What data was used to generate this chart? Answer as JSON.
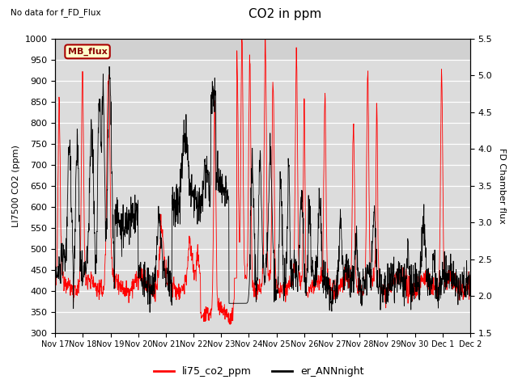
{
  "title": "CO2 in ppm",
  "top_left_text": "No data for f_FD_Flux",
  "legend_box_text": "MB_flux",
  "ylabel_left": "LI7500 CO2 (ppm)",
  "ylabel_right": "FD Chamber flux",
  "ylim_left": [
    300,
    1000
  ],
  "ylim_right": [
    1.5,
    5.5
  ],
  "xtick_labels": [
    "Nov 17",
    "Nov 18",
    "Nov 19",
    "Nov 20",
    "Nov 21",
    "Nov 22",
    "Nov 23",
    "Nov 24",
    "Nov 25",
    "Nov 26",
    "Nov 27",
    "Nov 28",
    "Nov 29",
    "Nov 30",
    "Dec 1",
    "Dec 2"
  ],
  "legend_entries": [
    "li75_co2_ppm",
    "er_ANNnight"
  ],
  "line1_color": "red",
  "line2_color": "black",
  "plot_bg_color": "#dcdcdc",
  "title_fontsize": 11,
  "label_fontsize": 8,
  "tick_fontsize": 8
}
